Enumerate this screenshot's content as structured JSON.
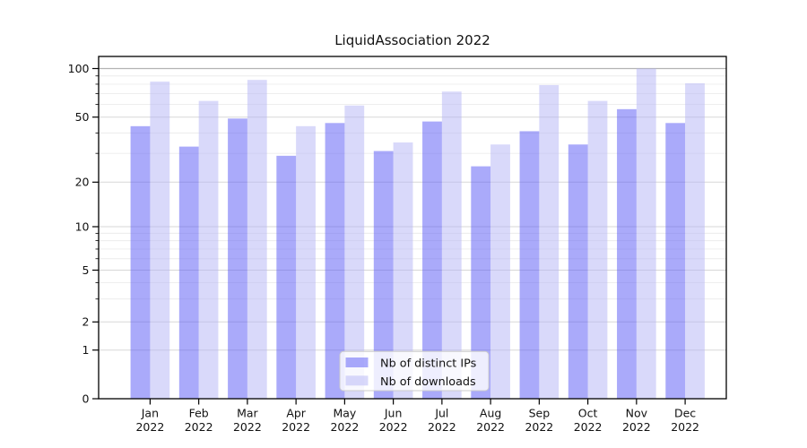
{
  "chart_data": {
    "type": "bar",
    "title": "LiquidAssociation 2022",
    "categories": [
      "Jan",
      "Feb",
      "Mar",
      "Apr",
      "May",
      "Jun",
      "Jul",
      "Aug",
      "Sep",
      "Oct",
      "Nov",
      "Dec"
    ],
    "category_year": "2022",
    "series": [
      {
        "name": "Nb of distinct IPs",
        "color": "#5555f5",
        "values": [
          44,
          33,
          49,
          29,
          46,
          31,
          47,
          25,
          41,
          34,
          56,
          46
        ]
      },
      {
        "name": "Nb of downloads",
        "color": "#b3b3f5",
        "values": [
          83,
          63,
          85,
          44,
          59,
          35,
          72,
          34,
          79,
          63,
          100,
          81
        ]
      }
    ],
    "y_axis": {
      "scale": "symlog",
      "ticks": [
        0,
        1,
        2,
        5,
        10,
        20,
        50,
        100
      ],
      "minor_ticks": [
        3,
        4,
        6,
        7,
        8,
        9,
        30,
        40,
        60,
        70,
        80,
        90
      ],
      "range": [
        0,
        100
      ]
    },
    "legend": {
      "position": "bottom-center",
      "entries": [
        "Nb of distinct IPs",
        "Nb of downloads"
      ]
    },
    "grid": true
  }
}
